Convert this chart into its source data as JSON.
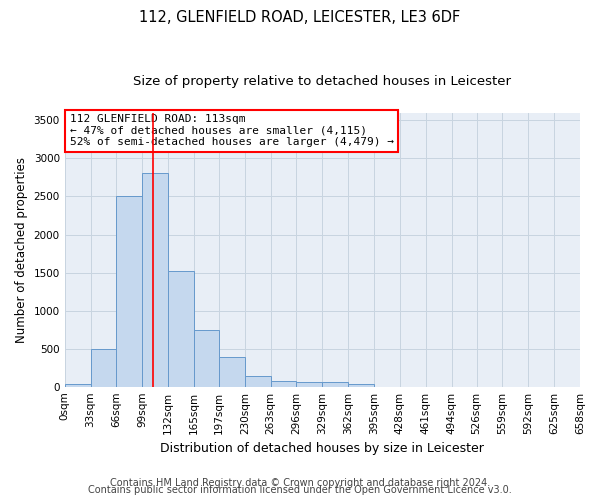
{
  "title1": "112, GLENFIELD ROAD, LEICESTER, LE3 6DF",
  "title2": "Size of property relative to detached houses in Leicester",
  "xlabel": "Distribution of detached houses by size in Leicester",
  "ylabel": "Number of detached properties",
  "bar_color": "#c5d8ee",
  "bar_edge_color": "#6699cc",
  "grid_color": "#c8d4e0",
  "background_color": "#e8eef6",
  "annotation_text": "112 GLENFIELD ROAD: 113sqm\n← 47% of detached houses are smaller (4,115)\n52% of semi-detached houses are larger (4,479) →",
  "bin_edges": [
    0,
    33,
    66,
    99,
    132,
    165,
    197,
    230,
    263,
    296,
    329,
    362,
    395,
    428,
    461,
    494,
    526,
    559,
    592,
    625,
    658
  ],
  "bar_heights": [
    30,
    490,
    2510,
    2810,
    1520,
    750,
    390,
    140,
    80,
    60,
    60,
    30,
    0,
    0,
    0,
    0,
    0,
    0,
    0,
    0
  ],
  "ylim": [
    0,
    3600
  ],
  "yticks": [
    0,
    500,
    1000,
    1500,
    2000,
    2500,
    3000,
    3500
  ],
  "red_line_x": 113,
  "footnote1": "Contains HM Land Registry data © Crown copyright and database right 2024.",
  "footnote2": "Contains public sector information licensed under the Open Government Licence v3.0.",
  "title1_fontsize": 10.5,
  "title2_fontsize": 9.5,
  "xlabel_fontsize": 9,
  "ylabel_fontsize": 8.5,
  "tick_fontsize": 7.5,
  "annotation_fontsize": 8,
  "footnote_fontsize": 7
}
